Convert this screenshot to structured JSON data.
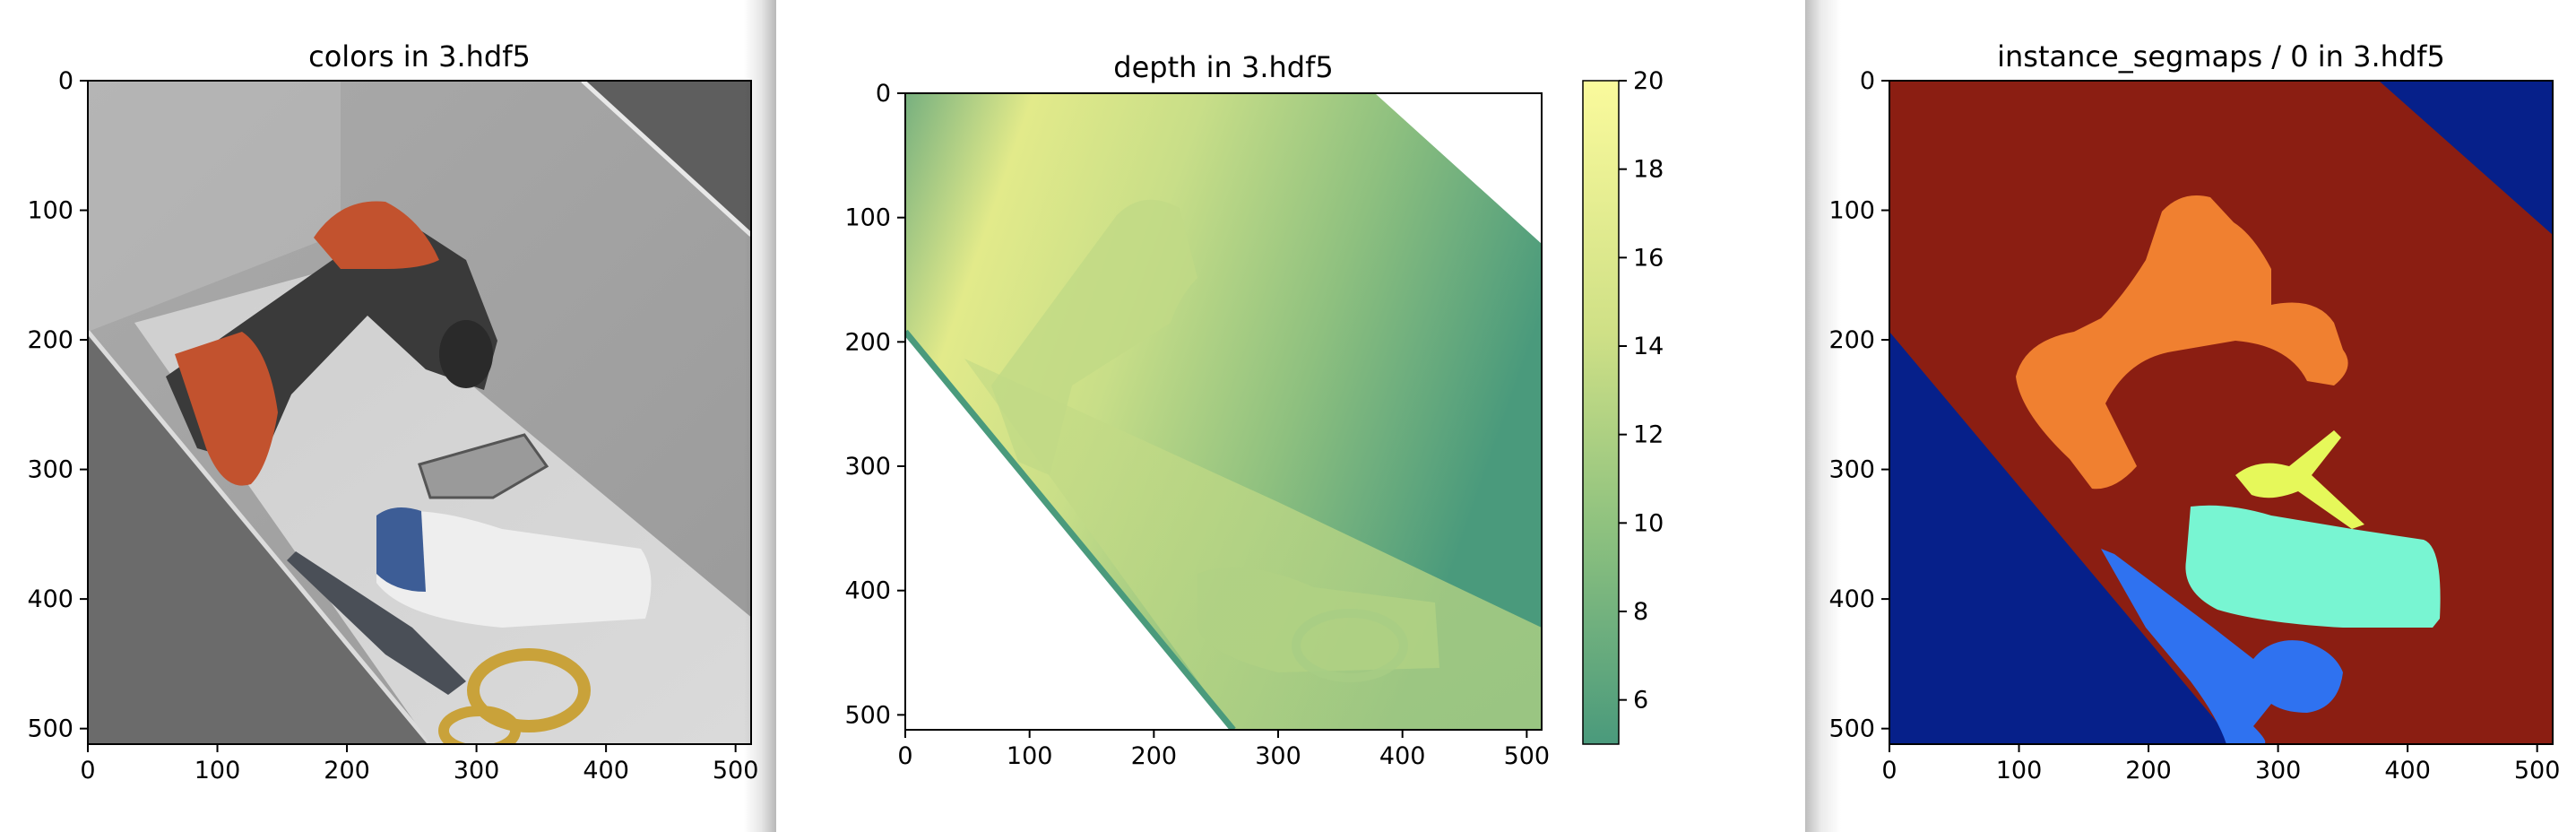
{
  "chart_data": [
    {
      "type": "image",
      "title": "colors in 3.hdf5",
      "xlim": [
        0,
        512
      ],
      "ylim": [
        512,
        0
      ],
      "xticks": [
        0,
        100,
        200,
        300,
        400,
        500
      ],
      "yticks": [
        0,
        100,
        200,
        300,
        400,
        500
      ]
    },
    {
      "type": "heatmap",
      "title": "depth in 3.hdf5",
      "xlim": [
        0,
        512
      ],
      "ylim": [
        512,
        0
      ],
      "xticks": [
        0,
        100,
        200,
        300,
        400,
        500
      ],
      "yticks": [
        0,
        100,
        200,
        300,
        400,
        500
      ],
      "colorbar": {
        "min": 5,
        "max": 20,
        "ticks": [
          6,
          8,
          10,
          12,
          14,
          16,
          18,
          20
        ]
      },
      "colors": {
        "low": "#4a9a7c",
        "mid": "#b6d68a",
        "high": "#fafa9c"
      }
    },
    {
      "type": "image",
      "title": "instance_segmaps / 0 in 3.hdf5",
      "xlim": [
        0,
        512
      ],
      "ylim": [
        512,
        0
      ],
      "xticks": [
        0,
        100,
        200,
        300,
        400,
        500
      ],
      "yticks": [
        0,
        100,
        200,
        300,
        400,
        500
      ],
      "colors": {
        "background": "#8b1e12",
        "floor": "#06208a",
        "drill": "#f08030",
        "clamp": "#e6f85a",
        "bottle": "#78f5d2",
        "scissors": "#2f72f0"
      }
    }
  ]
}
